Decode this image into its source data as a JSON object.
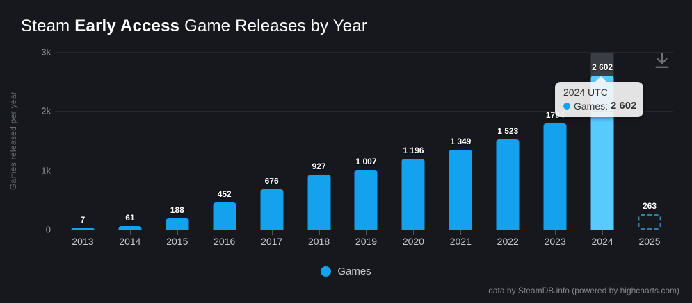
{
  "title": {
    "prefix": "Steam ",
    "highlight": "Early Access",
    "suffix": " Game Releases by Year"
  },
  "chart_data": {
    "type": "bar",
    "title": "Steam Early Access Game Releases by Year",
    "categories": [
      "2013",
      "2014",
      "2015",
      "2016",
      "2017",
      "2018",
      "2019",
      "2020",
      "2021",
      "2022",
      "2023",
      "2024",
      "2025"
    ],
    "series": [
      {
        "name": "Games",
        "values": [
          7,
          61,
          188,
          452,
          676,
          927,
          1007,
          1196,
          1349,
          1523,
          1794,
          2602,
          263
        ],
        "labels": [
          "7",
          "61",
          "188",
          "452",
          "676",
          "927",
          "1 007",
          "1 196",
          "1 349",
          "1 523",
          "1794",
          "2 602",
          "263"
        ]
      }
    ],
    "xlabel": "",
    "ylabel": "Games released per year",
    "ylim": [
      0,
      3000
    ],
    "yticks": [
      {
        "value": 0,
        "label": "0"
      },
      {
        "value": 1000,
        "label": "1k"
      },
      {
        "value": 2000,
        "label": "2k"
      },
      {
        "value": 3000,
        "label": "3k"
      }
    ],
    "grid": true,
    "legend_position": "bottom-center",
    "highlighted_index": 11,
    "forecast_index": 12
  },
  "tooltip": {
    "header": "2024 UTC",
    "series_label": "Games: ",
    "value": "2 602"
  },
  "legend": {
    "items": [
      {
        "label": "Games",
        "color": "#14a1ee"
      }
    ]
  },
  "footer": {
    "credit": "data by SteamDB.info (powered by highcharts.com)"
  },
  "icons": {
    "download": "download-icon"
  },
  "colors": {
    "background": "#16181d",
    "bar": "#14a1ee",
    "bar_hover": "#58cbfd",
    "forecast_border": "#2d7ea8",
    "hover_band": "#3a3d43",
    "gridline": "#24272d",
    "axis_line": "#4d5056",
    "title_text": "#ffffff",
    "tick_text": "#9b9ea4",
    "x_label_text": "#c7c9cd",
    "tooltip_bg": "#f5f5f5",
    "tooltip_text": "#333333",
    "footer_text": "#84878c"
  }
}
